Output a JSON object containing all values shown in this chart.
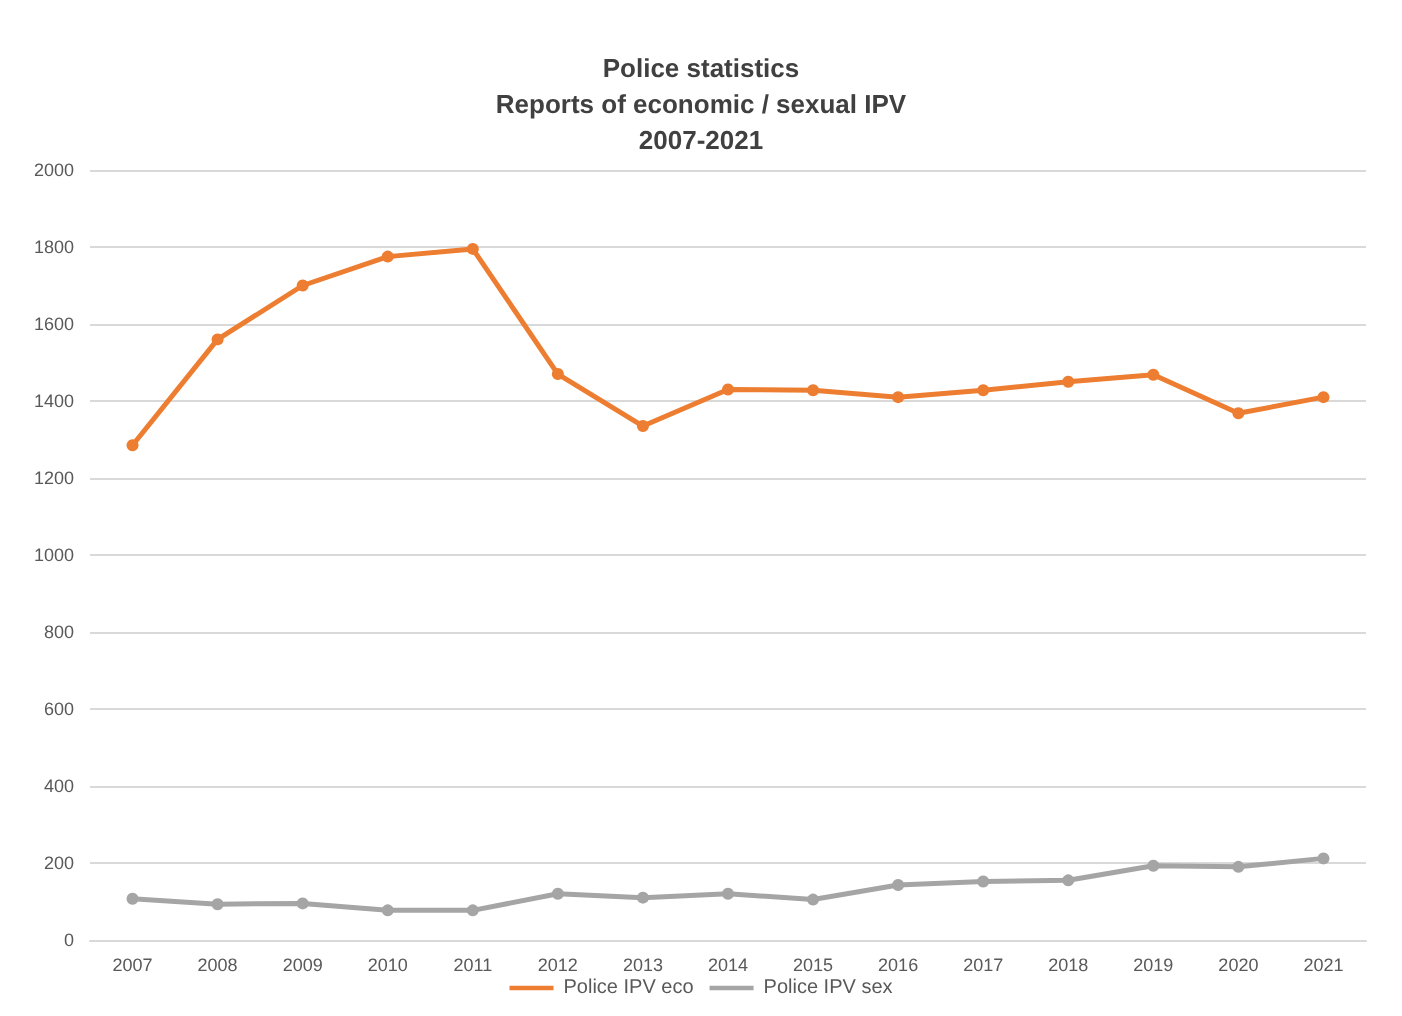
{
  "chart_data": {
    "type": "line",
    "title": "Police statistics\nReports of economic / sexual IPV\n2007-2021",
    "categories": [
      "2007",
      "2008",
      "2009",
      "2010",
      "2011",
      "2012",
      "2013",
      "2014",
      "2015",
      "2016",
      "2017",
      "2018",
      "2019",
      "2020",
      "2021"
    ],
    "series": [
      {
        "name": "Police IPV eco",
        "color": "#ed7d31",
        "values": [
          1285,
          1560,
          1700,
          1775,
          1795,
          1470,
          1335,
          1430,
          1428,
          1410,
          1428,
          1450,
          1468,
          1368,
          1410
        ]
      },
      {
        "name": "Police IPV sex",
        "color": "#a5a5a5",
        "values": [
          107,
          93,
          95,
          77,
          77,
          120,
          110,
          120,
          105,
          143,
          152,
          155,
          193,
          190,
          212
        ]
      }
    ],
    "ylim": [
      0,
      2000
    ],
    "yticks": [
      0,
      200,
      400,
      600,
      800,
      1000,
      1200,
      1400,
      1600,
      1800,
      2000
    ],
    "grid": "y",
    "legend": "bottom",
    "marker": "circle",
    "line_style": "solid"
  }
}
